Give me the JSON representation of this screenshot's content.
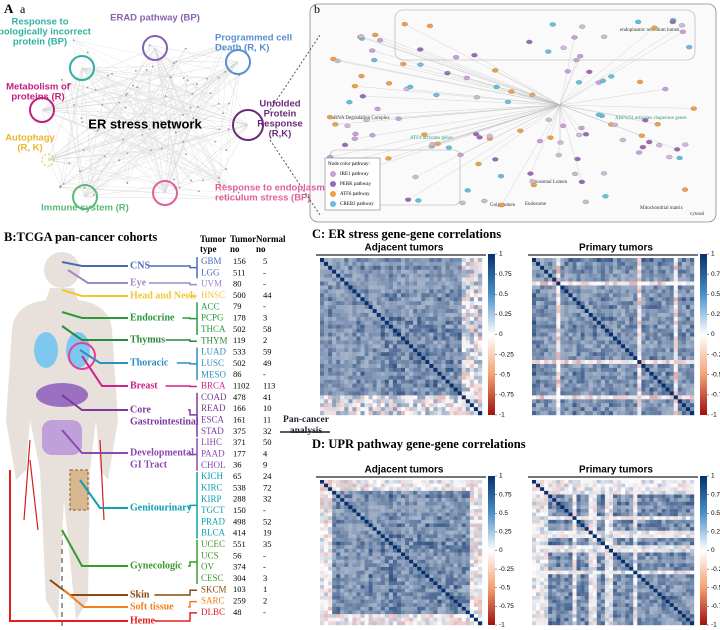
{
  "panel_A": {
    "label": "A",
    "sublabel": "a",
    "center": "ER stress network",
    "modules": [
      {
        "lines": [
          "ERAD pathway (BP)"
        ],
        "color": "#8a5fb0"
      },
      {
        "lines": [
          "Programmed cell",
          "Death (R, K)"
        ],
        "color": "#5b8fd0"
      },
      {
        "lines": [
          "Unfolded",
          "Protein",
          "Response",
          "(R,K)"
        ],
        "color": "#6a2a7a"
      },
      {
        "lines": [
          "Response to endoplasmic",
          "reticulum stress (BP)"
        ],
        "color": "#e0609a"
      },
      {
        "lines": [
          "Immune system (R)"
        ],
        "color": "#5cb87a"
      },
      {
        "lines": [
          "Autophagy",
          "(R, K)"
        ],
        "color": "#e8b830"
      },
      {
        "lines": [
          "Metabolism of",
          "proteins (R)"
        ],
        "color": "#c02080"
      },
      {
        "lines": [
          "Response to",
          "topologically incorrect",
          "protein (BP)"
        ],
        "color": "#30b0a0"
      }
    ]
  },
  "panel_b": {
    "label": "b",
    "compartments": [
      "endoplasmic reticulum lumen",
      "ATF4 activates genes",
      "XBP1(S) activates chaperone genes",
      "mRNA Degradation Complex",
      "Lysosomal Lumen",
      "Endosome",
      "Golgi lumen",
      "Mitochondrial matrix",
      "cytosol"
    ],
    "legend_title": "Node color  pathway:",
    "legend": [
      {
        "name": "IRE1 pathway",
        "color": "#c8a0d8"
      },
      {
        "name": "PERK pathway",
        "color": "#9a6ab8"
      },
      {
        "name": "ATF6 pathway",
        "color": "#f0a040"
      },
      {
        "name": "CREB3 pathway",
        "color": "#60c0e0"
      }
    ]
  },
  "panel_B": {
    "title": "B:TCGA pan-cancer cohorts",
    "headers": [
      [
        "Tumor",
        "type"
      ],
      [
        "Tumor",
        "no"
      ],
      [
        "Normal",
        "no"
      ]
    ],
    "systems": [
      {
        "name": [
          "CNS"
        ],
        "color": "#4a6ab8"
      },
      {
        "name": [
          "Eye"
        ],
        "color": "#a08ac8"
      },
      {
        "name": [
          "Head and Neck"
        ],
        "color": "#f0c830"
      },
      {
        "name": [
          "Endocrine"
        ],
        "color": "#2a9a3a"
      },
      {
        "name": [
          "Thymus"
        ],
        "color": "#2a8a3a"
      },
      {
        "name": [
          "Thoracic"
        ],
        "color": "#2a90c0"
      },
      {
        "name": [
          "Breast"
        ],
        "color": "#d0208a"
      },
      {
        "name": [
          "Core",
          "Gastrointestinal"
        ],
        "color": "#7a3a9a"
      },
      {
        "name": [
          "Developmental",
          "GI Tract"
        ],
        "color": "#8a4ab0"
      },
      {
        "name": [
          "Genitourinary"
        ],
        "color": "#10a0b0"
      },
      {
        "name": [
          "Gynecologic"
        ],
        "color": "#3a9a2a"
      },
      {
        "name": [
          "Skin"
        ],
        "color": "#8a4a10"
      },
      {
        "name": [
          "Soft tissue"
        ],
        "color": "#f08020"
      },
      {
        "name": [
          "Heme"
        ],
        "color": "#e02020"
      }
    ],
    "rows": [
      [
        "GBM",
        156,
        5,
        "#4a6ab8"
      ],
      [
        "LGG",
        511,
        "-",
        "#4a6ab8"
      ],
      [
        "UVM",
        80,
        "-",
        "#a08ac8"
      ],
      [
        "HNSC",
        500,
        44,
        "#f0c830"
      ],
      [
        "ACC",
        79,
        "-",
        "#2a9a3a"
      ],
      [
        "PCPG",
        178,
        3,
        "#2a9a3a"
      ],
      [
        "THCA",
        502,
        58,
        "#2a9a3a"
      ],
      [
        "THYM",
        119,
        2,
        "#2a8a3a"
      ],
      [
        "LUAD",
        533,
        59,
        "#2a90c0"
      ],
      [
        "LUSC",
        502,
        49,
        "#2a90c0"
      ],
      [
        "MESO",
        86,
        "-",
        "#2a90c0"
      ],
      [
        "BRCA",
        1102,
        113,
        "#d0208a"
      ],
      [
        "COAD",
        478,
        41,
        "#7a3a9a"
      ],
      [
        "READ",
        166,
        10,
        "#7a3a9a"
      ],
      [
        "ESCA",
        161,
        11,
        "#7a3a9a"
      ],
      [
        "STAD",
        375,
        32,
        "#7a3a9a"
      ],
      [
        "LIHC",
        371,
        50,
        "#8a4ab0"
      ],
      [
        "PAAD",
        177,
        4,
        "#8a4ab0"
      ],
      [
        "CHOL",
        36,
        9,
        "#8a4ab0"
      ],
      [
        "KICH",
        65,
        24,
        "#10a0b0"
      ],
      [
        "KIRC",
        538,
        72,
        "#10a0b0"
      ],
      [
        "KIRP",
        288,
        32,
        "#10a0b0"
      ],
      [
        "TGCT",
        150,
        "-",
        "#10a0b0"
      ],
      [
        "PRAD",
        498,
        52,
        "#10a0b0"
      ],
      [
        "BLCA",
        414,
        19,
        "#10a0b0"
      ],
      [
        "UCEC",
        551,
        35,
        "#3a9a2a"
      ],
      [
        "UCS",
        56,
        "-",
        "#3a9a2a"
      ],
      [
        "OV",
        374,
        "-",
        "#3a9a2a"
      ],
      [
        "CESC",
        304,
        3,
        "#3a9a2a"
      ],
      [
        "SKCM",
        103,
        1,
        "#8a4a10"
      ],
      [
        "SARC",
        259,
        2,
        "#f08020"
      ],
      [
        "DLBC",
        48,
        "-",
        "#e02020"
      ]
    ],
    "analysis": [
      "Pan-cancer",
      "analysis"
    ]
  },
  "panel_C": {
    "title": "C: ER stress gene-gene correlations",
    "panels": [
      "Adjacent tumors",
      "Primary tumors"
    ]
  },
  "panel_D": {
    "title": "D: UPR pathway gene-gene correlations",
    "panels": [
      "Adjacent tumors",
      "Primary tumors"
    ]
  },
  "colorbar": {
    "lim": [
      -1,
      1
    ],
    "ticks": [
      1,
      0.75,
      0.5,
      0.25,
      0,
      -0.25,
      -0.5,
      -0.75,
      -1
    ]
  }
}
